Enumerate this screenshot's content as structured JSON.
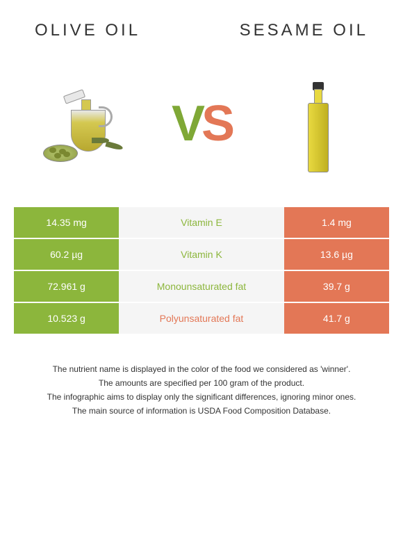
{
  "header": {
    "left_title": "OLIVE OIL",
    "right_title": "SESAME OIL"
  },
  "vs": {
    "v": "V",
    "s": "S"
  },
  "colors": {
    "green": "#8cb63c",
    "green_dark": "#7fa836",
    "orange": "#e37756",
    "middle_green": "#8cb63c",
    "middle_orange": "#e37756"
  },
  "rows": [
    {
      "left": "14.35 mg",
      "label": "Vitamin E",
      "right": "1.4 mg",
      "winner": "green"
    },
    {
      "left": "60.2 µg",
      "label": "Vitamin K",
      "right": "13.6 µg",
      "winner": "green"
    },
    {
      "left": "72.961 g",
      "label": "Monounsaturated fat",
      "right": "39.7 g",
      "winner": "green"
    },
    {
      "left": "10.523 g",
      "label": "Polyunsaturated fat",
      "right": "41.7 g",
      "winner": "orange"
    }
  ],
  "footer": {
    "line1": "The nutrient name is displayed in the color of the food we considered as 'winner'.",
    "line2": "The amounts are specified per 100 gram of the product.",
    "line3": "The infographic aims to display only the significant differences, ignoring minor ones.",
    "line4": "The main source of information is USDA Food Composition Database."
  }
}
